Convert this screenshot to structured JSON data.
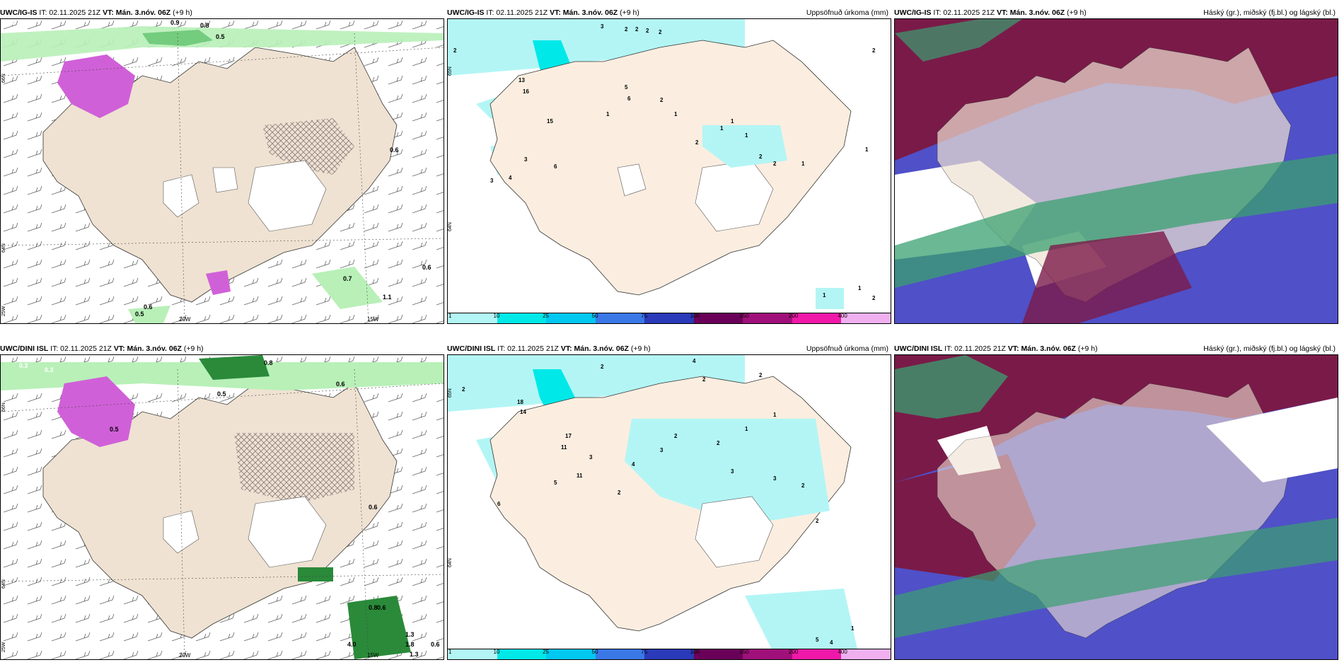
{
  "panels": [
    {
      "header_model": "UWC/IG-IS",
      "header_it": " IT: 02.11.2025 21Z ",
      "header_vt": "VT: Mán. 3.nóv. 06Z",
      "header_lead": " (+9 h)",
      "header_right": "",
      "lon_labels": [
        "20W",
        "15W"
      ],
      "lat_labels": [
        "66N",
        "64N",
        "25W"
      ],
      "values": [
        "0.4",
        "0.3",
        "0.9",
        "0.8",
        "0.5",
        "0.6",
        "0.7",
        "1.1",
        "0.6",
        "0.5",
        "0.6"
      ]
    },
    {
      "header_model": "UWC/IG-IS",
      "header_it": " IT: 02.11.2025 21Z ",
      "header_vt": "VT: Mán. 3.nóv. 06Z",
      "header_lead": " (+9 h)",
      "header_right": "Uppsöfnuð úrkoma (mm)",
      "lat_labels": [
        "65N",
        "64N"
      ],
      "values": [
        "2",
        "3",
        "2",
        "2",
        "2",
        "2",
        "2",
        "13",
        "16",
        "15",
        "6",
        "3",
        "4",
        "5",
        "6",
        "3",
        "1",
        "1",
        "2",
        "2",
        "1",
        "1",
        "1",
        "2",
        "2",
        "1",
        "1",
        "2",
        "1",
        "1"
      ]
    },
    {
      "header_model": "UWC/IG-IS",
      "header_it": " IT: 02.11.2025 21Z ",
      "header_vt": "VT: Mán. 3.nóv. 06Z",
      "header_lead": " (+9 h)",
      "header_right": "Háský (gr.), miðský (fj.bl.) og lágský (bl.)"
    },
    {
      "header_model": "UWC/DINI ISL",
      "header_it": " IT: 02.11.2025 21Z ",
      "header_vt": "VT: Mán. 3.nóv. 06Z",
      "header_lead": " (+9 h)",
      "header_right": "",
      "lon_labels": [
        "20W",
        "15W"
      ],
      "lat_labels": [
        "66N",
        "64N",
        "25W"
      ],
      "values": [
        "0.3",
        "0.3",
        "0.5",
        "0.8",
        "0.6",
        "0.6",
        "0.5",
        "4.0",
        "0.6",
        "0.8",
        "1.3",
        "1.8",
        "1.3",
        "0.6"
      ]
    },
    {
      "header_model": "UWC/DINI ISL",
      "header_it": " IT: 02.11.2025 21Z ",
      "header_vt": "VT: Mán. 3.nóv. 06Z",
      "header_lead": " (+9 h)",
      "header_right": "Uppsöfnuð úrkoma (mm)",
      "lat_labels": [
        "65N",
        "64N"
      ],
      "values": [
        "2",
        "2",
        "4",
        "2",
        "2",
        "18",
        "14",
        "17",
        "11",
        "11",
        "6",
        "5",
        "3",
        "2",
        "4",
        "3",
        "2",
        "2",
        "1",
        "1",
        "3",
        "3",
        "2",
        "2",
        "5",
        "4",
        "1"
      ]
    },
    {
      "header_model": "UWC/DINI ISL",
      "header_it": " IT: 02.11.2025 21Z ",
      "header_vt": "VT: Mán. 3.nóv. 06Z",
      "header_lead": " (+9 h)",
      "header_right": "Háský (gr.), miðský (fj.bl.) og lágský (bl.)"
    }
  ],
  "legend": {
    "ticks": [
      "1",
      "10",
      "25",
      "50",
      "75",
      "100",
      "150",
      "200",
      "400"
    ],
    "colors": [
      "#b3f5f5",
      "#00e8e8",
      "#00c8f0",
      "#3a78e8",
      "#2a3ab8",
      "#6a0058",
      "#a0107a",
      "#f018a8",
      "#f0b0f0"
    ]
  },
  "colors": {
    "land": "#efe2d2",
    "precip_light": "#b8f0b8",
    "precip_mid": "#6cc878",
    "precip_dark": "#2a8a3a",
    "snow": "#d060d8",
    "cloud_high": "#3aa070",
    "cloud_mid": "#7a1a48",
    "cloud_low": "#5050c8"
  }
}
